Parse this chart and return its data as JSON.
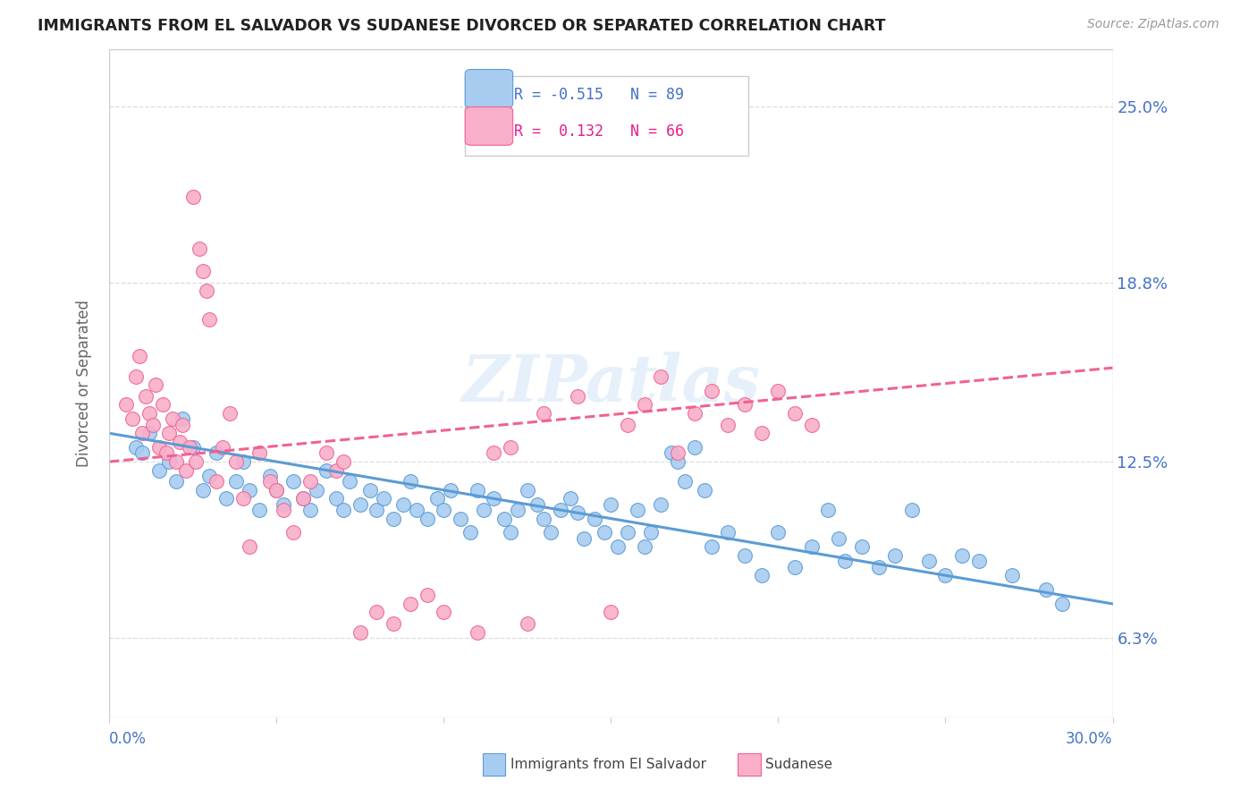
{
  "title": "IMMIGRANTS FROM EL SALVADOR VS SUDANESE DIVORCED OR SEPARATED CORRELATION CHART",
  "source": "Source: ZipAtlas.com",
  "ylabel": "Divorced or Separated",
  "ytick_labels": [
    "6.3%",
    "12.5%",
    "18.8%",
    "25.0%"
  ],
  "ytick_values": [
    0.063,
    0.125,
    0.188,
    0.25
  ],
  "xlim": [
    0.0,
    0.3
  ],
  "ylim": [
    0.035,
    0.27
  ],
  "legend_r1_label": "R = -0.515",
  "legend_n1_label": "N = 89",
  "legend_r2_label": "R =  0.132",
  "legend_n2_label": "N = 66",
  "color_blue": "#A8CCF0",
  "color_pink": "#F9AECA",
  "color_blue_edge": "#5B9BD5",
  "color_pink_edge": "#F06292",
  "color_blue_text": "#4472C4",
  "color_pink_text": "#E91E8C",
  "watermark": "ZIPatlas",
  "blue_scatter": [
    [
      0.008,
      0.13
    ],
    [
      0.01,
      0.128
    ],
    [
      0.012,
      0.135
    ],
    [
      0.015,
      0.122
    ],
    [
      0.018,
      0.125
    ],
    [
      0.02,
      0.118
    ],
    [
      0.022,
      0.14
    ],
    [
      0.025,
      0.13
    ],
    [
      0.028,
      0.115
    ],
    [
      0.03,
      0.12
    ],
    [
      0.032,
      0.128
    ],
    [
      0.035,
      0.112
    ],
    [
      0.038,
      0.118
    ],
    [
      0.04,
      0.125
    ],
    [
      0.042,
      0.115
    ],
    [
      0.045,
      0.108
    ],
    [
      0.048,
      0.12
    ],
    [
      0.05,
      0.115
    ],
    [
      0.052,
      0.11
    ],
    [
      0.055,
      0.118
    ],
    [
      0.058,
      0.112
    ],
    [
      0.06,
      0.108
    ],
    [
      0.062,
      0.115
    ],
    [
      0.065,
      0.122
    ],
    [
      0.068,
      0.112
    ],
    [
      0.07,
      0.108
    ],
    [
      0.072,
      0.118
    ],
    [
      0.075,
      0.11
    ],
    [
      0.078,
      0.115
    ],
    [
      0.08,
      0.108
    ],
    [
      0.082,
      0.112
    ],
    [
      0.085,
      0.105
    ],
    [
      0.088,
      0.11
    ],
    [
      0.09,
      0.118
    ],
    [
      0.092,
      0.108
    ],
    [
      0.095,
      0.105
    ],
    [
      0.098,
      0.112
    ],
    [
      0.1,
      0.108
    ],
    [
      0.102,
      0.115
    ],
    [
      0.105,
      0.105
    ],
    [
      0.108,
      0.1
    ],
    [
      0.11,
      0.115
    ],
    [
      0.112,
      0.108
    ],
    [
      0.115,
      0.112
    ],
    [
      0.118,
      0.105
    ],
    [
      0.12,
      0.1
    ],
    [
      0.122,
      0.108
    ],
    [
      0.125,
      0.115
    ],
    [
      0.128,
      0.11
    ],
    [
      0.13,
      0.105
    ],
    [
      0.132,
      0.1
    ],
    [
      0.135,
      0.108
    ],
    [
      0.138,
      0.112
    ],
    [
      0.14,
      0.107
    ],
    [
      0.142,
      0.098
    ],
    [
      0.145,
      0.105
    ],
    [
      0.148,
      0.1
    ],
    [
      0.15,
      0.11
    ],
    [
      0.152,
      0.095
    ],
    [
      0.155,
      0.1
    ],
    [
      0.158,
      0.108
    ],
    [
      0.16,
      0.095
    ],
    [
      0.162,
      0.1
    ],
    [
      0.165,
      0.11
    ],
    [
      0.168,
      0.128
    ],
    [
      0.17,
      0.125
    ],
    [
      0.172,
      0.118
    ],
    [
      0.175,
      0.13
    ],
    [
      0.178,
      0.115
    ],
    [
      0.18,
      0.095
    ],
    [
      0.185,
      0.1
    ],
    [
      0.19,
      0.092
    ],
    [
      0.195,
      0.085
    ],
    [
      0.2,
      0.1
    ],
    [
      0.205,
      0.088
    ],
    [
      0.21,
      0.095
    ],
    [
      0.215,
      0.108
    ],
    [
      0.218,
      0.098
    ],
    [
      0.22,
      0.09
    ],
    [
      0.225,
      0.095
    ],
    [
      0.23,
      0.088
    ],
    [
      0.235,
      0.092
    ],
    [
      0.24,
      0.108
    ],
    [
      0.245,
      0.09
    ],
    [
      0.25,
      0.085
    ],
    [
      0.255,
      0.092
    ],
    [
      0.26,
      0.09
    ],
    [
      0.27,
      0.085
    ],
    [
      0.28,
      0.08
    ],
    [
      0.285,
      0.075
    ]
  ],
  "pink_scatter": [
    [
      0.005,
      0.145
    ],
    [
      0.007,
      0.14
    ],
    [
      0.008,
      0.155
    ],
    [
      0.009,
      0.162
    ],
    [
      0.01,
      0.135
    ],
    [
      0.011,
      0.148
    ],
    [
      0.012,
      0.142
    ],
    [
      0.013,
      0.138
    ],
    [
      0.014,
      0.152
    ],
    [
      0.015,
      0.13
    ],
    [
      0.016,
      0.145
    ],
    [
      0.017,
      0.128
    ],
    [
      0.018,
      0.135
    ],
    [
      0.019,
      0.14
    ],
    [
      0.02,
      0.125
    ],
    [
      0.021,
      0.132
    ],
    [
      0.022,
      0.138
    ],
    [
      0.023,
      0.122
    ],
    [
      0.024,
      0.13
    ],
    [
      0.025,
      0.218
    ],
    [
      0.026,
      0.125
    ],
    [
      0.027,
      0.2
    ],
    [
      0.028,
      0.192
    ],
    [
      0.029,
      0.185
    ],
    [
      0.03,
      0.175
    ],
    [
      0.032,
      0.118
    ],
    [
      0.034,
      0.13
    ],
    [
      0.036,
      0.142
    ],
    [
      0.038,
      0.125
    ],
    [
      0.04,
      0.112
    ],
    [
      0.042,
      0.095
    ],
    [
      0.045,
      0.128
    ],
    [
      0.048,
      0.118
    ],
    [
      0.05,
      0.115
    ],
    [
      0.052,
      0.108
    ],
    [
      0.055,
      0.1
    ],
    [
      0.058,
      0.112
    ],
    [
      0.06,
      0.118
    ],
    [
      0.065,
      0.128
    ],
    [
      0.068,
      0.122
    ],
    [
      0.07,
      0.125
    ],
    [
      0.075,
      0.065
    ],
    [
      0.08,
      0.072
    ],
    [
      0.085,
      0.068
    ],
    [
      0.09,
      0.075
    ],
    [
      0.095,
      0.078
    ],
    [
      0.1,
      0.072
    ],
    [
      0.11,
      0.065
    ],
    [
      0.115,
      0.128
    ],
    [
      0.12,
      0.13
    ],
    [
      0.125,
      0.068
    ],
    [
      0.13,
      0.142
    ],
    [
      0.14,
      0.148
    ],
    [
      0.15,
      0.072
    ],
    [
      0.155,
      0.138
    ],
    [
      0.16,
      0.145
    ],
    [
      0.165,
      0.155
    ],
    [
      0.17,
      0.128
    ],
    [
      0.175,
      0.142
    ],
    [
      0.18,
      0.15
    ],
    [
      0.185,
      0.138
    ],
    [
      0.19,
      0.145
    ],
    [
      0.195,
      0.135
    ],
    [
      0.2,
      0.15
    ],
    [
      0.205,
      0.142
    ],
    [
      0.21,
      0.138
    ]
  ],
  "blue_line_x": [
    0.0,
    0.3
  ],
  "blue_line_y_start": 0.135,
  "blue_line_y_end": 0.075,
  "pink_line_x": [
    0.0,
    0.3
  ],
  "pink_line_y_start": 0.125,
  "pink_line_y_end": 0.158,
  "grid_color": "#DDDDDD",
  "background_color": "#FFFFFF",
  "xtick_positions": [
    0.0,
    0.05,
    0.1,
    0.15,
    0.2,
    0.25,
    0.3
  ]
}
